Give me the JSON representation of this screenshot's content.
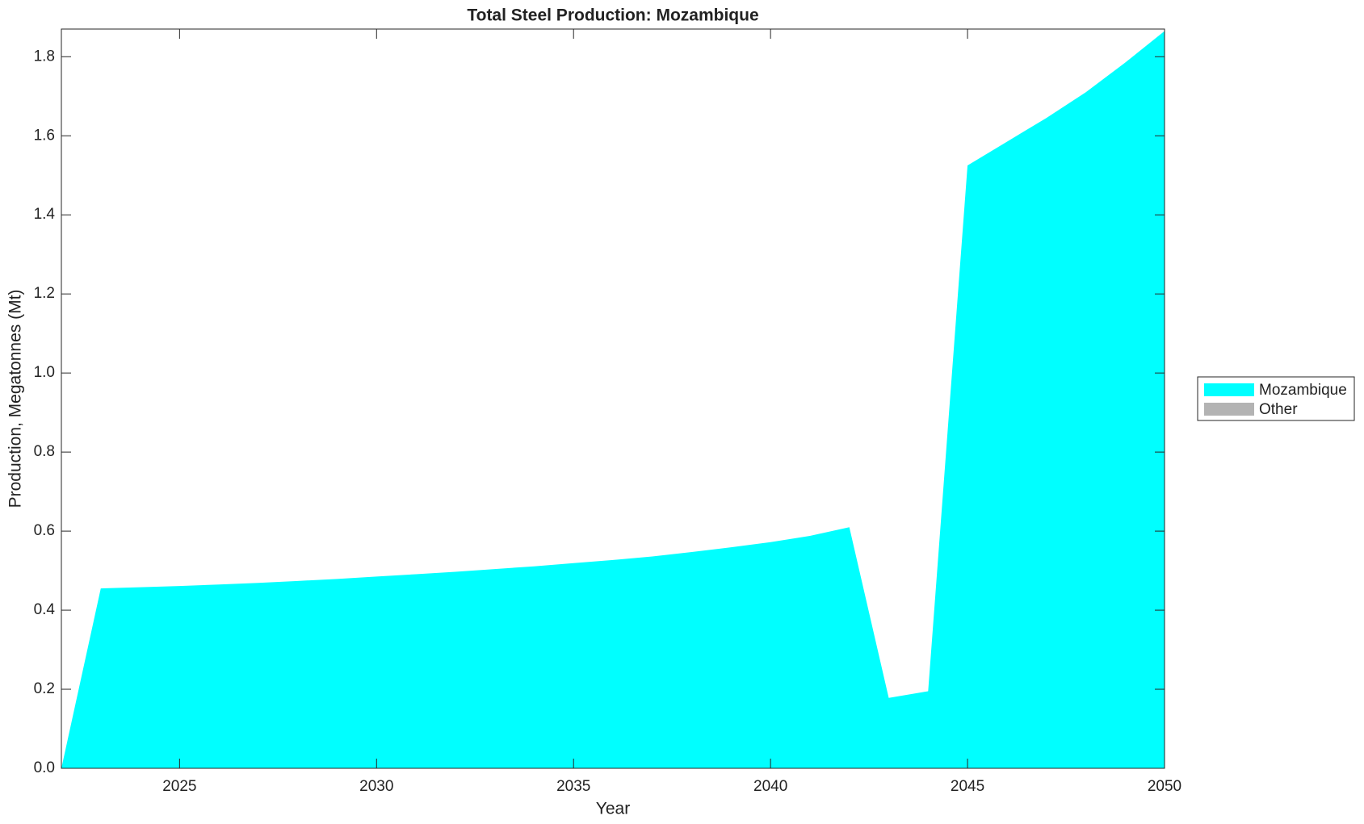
{
  "chart_data": {
    "type": "stacked-area",
    "title": "Total Steel Production: Mozambique",
    "xlabel": "Year",
    "ylabel": "Production, Megatonnes (Mt)",
    "x": [
      2022,
      2023,
      2024,
      2025,
      2026,
      2027,
      2028,
      2029,
      2030,
      2031,
      2032,
      2033,
      2034,
      2035,
      2036,
      2037,
      2038,
      2039,
      2040,
      2041,
      2042,
      2043,
      2044,
      2045,
      2046,
      2047,
      2048,
      2049,
      2050
    ],
    "series": [
      {
        "name": "Mozambique",
        "color": "#00ffff",
        "values": [
          0,
          0.455,
          0.458,
          0.461,
          0.465,
          0.469,
          0.474,
          0.479,
          0.485,
          0.491,
          0.497,
          0.504,
          0.511,
          0.519,
          0.527,
          0.536,
          0.547,
          0.559,
          0.572,
          0.588,
          0.61,
          0.178,
          0.195,
          1.525,
          1.585,
          1.645,
          1.71,
          1.785,
          1.865
        ]
      },
      {
        "name": "Other",
        "color": "#b3b3b3",
        "values": [
          0,
          0,
          0,
          0,
          0,
          0,
          0,
          0,
          0,
          0,
          0,
          0,
          0,
          0,
          0,
          0,
          0,
          0,
          0,
          0,
          0,
          0,
          0,
          0,
          0,
          0,
          0,
          0,
          0
        ]
      }
    ],
    "xlim": [
      2022,
      2050
    ],
    "xticks": [
      2025,
      2030,
      2035,
      2040,
      2045,
      2050
    ],
    "ylim": [
      0,
      1.87
    ],
    "yticks": [
      {
        "value": 0,
        "label": "0.0"
      },
      0.2,
      0.4,
      0.6,
      0.8,
      {
        "value": 1,
        "label": "1.0"
      },
      1.2,
      1.4,
      1.6,
      1.8
    ],
    "legend": "right"
  }
}
